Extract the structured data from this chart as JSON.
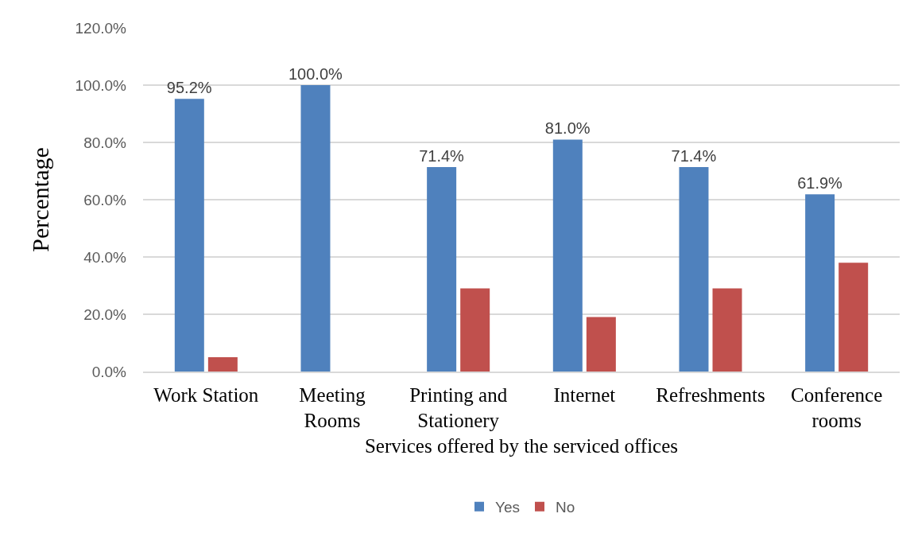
{
  "chart_data": {
    "type": "bar",
    "xlabel": "Services offered by the serviced offices",
    "ylabel": "Percentage",
    "categories": [
      "Work Station",
      "Meeting Rooms",
      "Printing and Stationery",
      "Internet",
      "Refreshments",
      "Conference rooms"
    ],
    "series": [
      {
        "name": "Yes",
        "color": "#4f81bd",
        "values": [
          95.2,
          100.0,
          71.4,
          81.0,
          71.4,
          61.9
        ],
        "value_labels": [
          "95.2%",
          "100.0%",
          "71.4%",
          "81.0%",
          "71.4%",
          "61.9%"
        ]
      },
      {
        "name": "No",
        "color": "#c0504d",
        "values": [
          5,
          0,
          29,
          19,
          29,
          38
        ]
      }
    ],
    "ylim": [
      0,
      120
    ],
    "yticks": [
      {
        "value": 0,
        "label": "0.0%"
      },
      {
        "value": 20,
        "label": "20.0%"
      },
      {
        "value": 40,
        "label": "40.0%"
      },
      {
        "value": 60,
        "label": "60.0%"
      },
      {
        "value": 80,
        "label": "80.0%"
      },
      {
        "value": 100,
        "label": "100.0%"
      },
      {
        "value": 120,
        "label": "120.0%"
      }
    ],
    "grid": "y",
    "legend": "bottom"
  }
}
